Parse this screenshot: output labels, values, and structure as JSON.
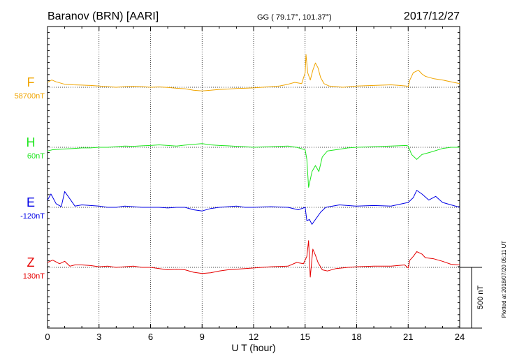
{
  "header": {
    "station": "Baranov (BRN)  [AARI]",
    "coords": "GG ( 79.17°, 101.37°)",
    "date": "2017/12/27"
  },
  "footer": {
    "plotted": "Plotted at 2018/07/20 05:11 UT"
  },
  "chart_data": {
    "type": "line",
    "xlabel": "U T (hour)",
    "xlim": [
      0,
      24
    ],
    "xticks": [
      "0",
      "3",
      "6",
      "9",
      "12",
      "15",
      "18",
      "21",
      "24"
    ],
    "scale_bar": {
      "label": "500 nT",
      "value": 500
    },
    "grid": true,
    "series": [
      {
        "name": "F",
        "baseline_label": "58700nT",
        "color": "#f0a500",
        "x": [
          0,
          0.25,
          0.5,
          1,
          1.5,
          2,
          2.5,
          3,
          3.5,
          4,
          4.5,
          5,
          5.5,
          6,
          6.5,
          7,
          7.5,
          8,
          8.5,
          9,
          9.5,
          10,
          10.5,
          11,
          11.5,
          12,
          12.5,
          13,
          13.5,
          14,
          14.4,
          14.8,
          15,
          15.05,
          15.15,
          15.3,
          15.45,
          15.6,
          15.75,
          15.9,
          16.1,
          16.4,
          16.8,
          17.2,
          18,
          19,
          20,
          20.5,
          20.9,
          21,
          21.1,
          21.3,
          21.6,
          21.8,
          22,
          22.5,
          23,
          23.5,
          24
        ],
        "values": [
          40,
          60,
          45,
          25,
          20,
          18,
          15,
          10,
          5,
          0,
          5,
          8,
          5,
          0,
          3,
          -2,
          -8,
          -12,
          -25,
          -30,
          -25,
          -18,
          -15,
          -10,
          -8,
          -5,
          0,
          5,
          10,
          25,
          40,
          30,
          120,
          270,
          120,
          60,
          140,
          200,
          160,
          80,
          30,
          10,
          5,
          0,
          10,
          15,
          20,
          15,
          10,
          5,
          60,
          120,
          140,
          110,
          90,
          70,
          60,
          45,
          30
        ]
      },
      {
        "name": "H",
        "baseline_label": "60nT",
        "color": "#1ee61e",
        "x": [
          0,
          0.3,
          0.8,
          1.5,
          2,
          2.5,
          3,
          3.5,
          4,
          4.5,
          5,
          5.5,
          6,
          6.5,
          7,
          7.5,
          8,
          8.5,
          9,
          9.5,
          10,
          10.5,
          11,
          11.5,
          12,
          13,
          14,
          14.5,
          15,
          15.1,
          15.2,
          15.4,
          15.6,
          15.8,
          16,
          16.3,
          16.8,
          17.5,
          18,
          19,
          20,
          20.9,
          21,
          21.2,
          21.5,
          21.8,
          22.3,
          23,
          23.5,
          24
        ],
        "values": [
          -30,
          -20,
          -15,
          -10,
          -5,
          -5,
          0,
          0,
          5,
          10,
          8,
          12,
          15,
          20,
          15,
          10,
          18,
          25,
          30,
          20,
          15,
          12,
          8,
          5,
          0,
          5,
          10,
          0,
          -20,
          -100,
          -330,
          -200,
          -150,
          -200,
          -80,
          -30,
          -20,
          -5,
          0,
          5,
          10,
          15,
          10,
          -60,
          -100,
          -60,
          -40,
          -10,
          0,
          0
        ]
      },
      {
        "name": "E",
        "baseline_label": "-120nT",
        "color": "#0000e6",
        "x": [
          0,
          0.2,
          0.5,
          0.8,
          1,
          1.3,
          1.6,
          2,
          2.5,
          3,
          3.5,
          4,
          4.5,
          5,
          5.5,
          6,
          6.5,
          7,
          7.5,
          8,
          8.5,
          9,
          9.5,
          10,
          10.5,
          11,
          11.5,
          12,
          13,
          14,
          14.6,
          15,
          15.1,
          15.25,
          15.4,
          15.5,
          15.7,
          15.9,
          16.2,
          16.6,
          17,
          18,
          19,
          20,
          20.5,
          21,
          21.3,
          21.5,
          21.8,
          22.2,
          22.6,
          23,
          23.5,
          24
        ],
        "values": [
          60,
          110,
          30,
          5,
          130,
          70,
          10,
          20,
          15,
          10,
          0,
          0,
          10,
          5,
          0,
          0,
          0,
          -5,
          0,
          0,
          -20,
          -30,
          -10,
          0,
          5,
          10,
          0,
          0,
          5,
          0,
          -20,
          0,
          -110,
          -100,
          -140,
          -120,
          -80,
          -40,
          0,
          10,
          20,
          10,
          15,
          10,
          25,
          40,
          80,
          140,
          110,
          60,
          90,
          40,
          20,
          0
        ]
      },
      {
        "name": "Z",
        "baseline_label": "130nT",
        "color": "#e60000",
        "x": [
          0,
          0.3,
          0.7,
          1,
          1.3,
          1.6,
          2,
          2.5,
          3,
          3.5,
          4,
          4.5,
          5,
          5.5,
          6,
          6.5,
          7,
          7.5,
          8,
          8.5,
          9,
          9.5,
          10,
          10.5,
          11,
          11.5,
          12,
          13,
          14,
          14.5,
          14.9,
          15.1,
          15.2,
          15.3,
          15.45,
          15.6,
          15.75,
          16,
          16.3,
          16.8,
          17.5,
          18,
          19,
          20,
          20.8,
          21,
          21.1,
          21.3,
          21.5,
          21.8,
          22,
          22.5,
          23,
          23.5,
          24
        ],
        "values": [
          40,
          60,
          30,
          50,
          10,
          20,
          20,
          15,
          5,
          10,
          0,
          5,
          10,
          0,
          0,
          -10,
          -20,
          -15,
          -20,
          -40,
          -50,
          -45,
          -30,
          -20,
          -15,
          -10,
          -5,
          5,
          10,
          40,
          30,
          90,
          220,
          -80,
          150,
          100,
          40,
          -20,
          -30,
          -10,
          0,
          5,
          10,
          10,
          20,
          -5,
          60,
          90,
          130,
          110,
          80,
          70,
          50,
          25,
          20
        ]
      }
    ]
  }
}
